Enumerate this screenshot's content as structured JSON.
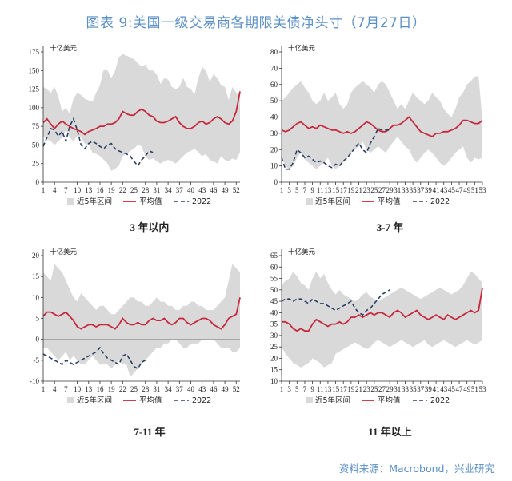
{
  "title": "图表 9:美国一级交易商各期限美债净头寸（7月27日）",
  "source": "资料来源：Macrobond，兴业研究",
  "colors": {
    "band": "#d9d9d9",
    "avg": "#c8283c",
    "y2022": "#2b3f66",
    "title": "#5b8fc6"
  },
  "chart_data": [
    {
      "type": "line",
      "caption": "3 年以内",
      "unit": "十亿美元",
      "ylim": [
        0,
        175
      ],
      "yticks": [
        0,
        25,
        50,
        75,
        100,
        125,
        150,
        175
      ],
      "xlim": [
        1,
        53
      ],
      "xticks": [
        1,
        4,
        7,
        10,
        13,
        16,
        19,
        22,
        25,
        28,
        31,
        34,
        37,
        40,
        43,
        46,
        49,
        52
      ],
      "legend": [
        "近5年区间",
        "平均值",
        "2022"
      ],
      "band_upper": [
        128,
        125,
        120,
        128,
        115,
        95,
        100,
        92,
        112,
        120,
        117,
        112,
        110,
        108,
        120,
        130,
        152,
        150,
        140,
        150,
        168,
        172,
        170,
        168,
        165,
        160,
        155,
        158,
        150,
        150,
        145,
        132,
        140,
        138,
        128,
        125,
        128,
        140,
        128,
        125,
        118,
        140,
        155,
        150,
        135,
        145,
        140,
        130,
        128,
        110,
        128,
        120,
        115
      ],
      "band_lower": [
        62,
        58,
        55,
        50,
        55,
        60,
        70,
        60,
        55,
        62,
        60,
        52,
        50,
        40,
        38,
        35,
        30,
        25,
        15,
        18,
        22,
        35,
        38,
        42,
        45,
        50,
        48,
        35,
        30,
        32,
        28,
        25,
        28,
        30,
        28,
        25,
        30,
        35,
        40,
        42,
        45,
        40,
        35,
        38,
        30,
        28,
        25,
        35,
        30,
        28,
        32,
        30,
        40
      ],
      "avg": [
        80,
        85,
        78,
        72,
        78,
        82,
        78,
        75,
        72,
        70,
        68,
        64,
        68,
        70,
        72,
        75,
        75,
        78,
        78,
        80,
        85,
        95,
        92,
        90,
        90,
        95,
        98,
        95,
        90,
        88,
        82,
        80,
        80,
        82,
        85,
        88,
        80,
        75,
        72,
        72,
        75,
        80,
        82,
        78,
        80,
        85,
        88,
        85,
        80,
        78,
        82,
        95,
        122
      ],
      "y2022": [
        48,
        60,
        72,
        70,
        62,
        68,
        55,
        75,
        85,
        70,
        50,
        45,
        52,
        55,
        52,
        48,
        45,
        50,
        52,
        45,
        42,
        40,
        38,
        35,
        28,
        22,
        30,
        35,
        42,
        40
      ]
    },
    {
      "type": "line",
      "caption": "3-7 年",
      "unit": "十亿美元",
      "ylim": [
        0,
        80
      ],
      "yticks": [
        0,
        10,
        20,
        30,
        40,
        50,
        60,
        70,
        80
      ],
      "xlim": [
        1,
        53
      ],
      "xticks": [
        1,
        3,
        5,
        7,
        9,
        11,
        13,
        15,
        17,
        19,
        21,
        23,
        25,
        27,
        29,
        31,
        33,
        35,
        37,
        39,
        41,
        43,
        45,
        47,
        49,
        51,
        53
      ],
      "legend": [
        "近5年区间",
        "平均值",
        "2022"
      ],
      "band_upper": [
        50,
        52,
        55,
        58,
        60,
        62,
        58,
        55,
        50,
        48,
        50,
        55,
        50,
        52,
        55,
        48,
        45,
        48,
        55,
        58,
        60,
        62,
        60,
        58,
        55,
        60,
        62,
        60,
        55,
        50,
        45,
        48,
        45,
        50,
        55,
        52,
        50,
        48,
        50,
        55,
        52,
        50,
        45,
        42,
        40,
        45,
        52,
        55,
        60,
        62,
        65,
        65,
        38
      ],
      "band_lower": [
        15,
        10,
        8,
        10,
        15,
        18,
        14,
        12,
        10,
        8,
        10,
        12,
        15,
        10,
        8,
        10,
        12,
        15,
        18,
        20,
        22,
        25,
        20,
        18,
        20,
        22,
        20,
        18,
        22,
        25,
        28,
        25,
        22,
        20,
        15,
        12,
        15,
        18,
        20,
        18,
        15,
        12,
        10,
        12,
        15,
        18,
        20,
        22,
        15,
        12,
        15,
        14,
        15
      ],
      "avg": [
        32,
        31,
        32,
        34,
        36,
        37,
        35,
        33,
        34,
        33,
        35,
        34,
        33,
        32,
        32,
        31,
        30,
        31,
        30,
        31,
        33,
        35,
        37,
        36,
        34,
        32,
        31,
        31,
        33,
        35,
        35,
        36,
        38,
        40,
        37,
        34,
        31,
        30,
        29,
        28,
        30,
        30,
        31,
        31,
        32,
        33,
        35,
        38,
        38,
        37,
        36,
        36,
        38
      ],
      "y2022": [
        15,
        8,
        8,
        12,
        20,
        18,
        15,
        16,
        14,
        12,
        13,
        12,
        10,
        9,
        11,
        10,
        13,
        15,
        18,
        21,
        24,
        20,
        18,
        24,
        28,
        33,
        32,
        32,
        32
      ]
    },
    {
      "type": "line",
      "caption": "7-11 年",
      "unit": "十亿美元",
      "ylim": [
        -10,
        20
      ],
      "yticks": [
        -10,
        -5,
        0,
        5,
        10,
        15,
        20
      ],
      "xlim": [
        1,
        53
      ],
      "xticks": [
        1,
        4,
        7,
        10,
        13,
        16,
        19,
        22,
        25,
        28,
        31,
        34,
        37,
        40,
        43,
        46,
        49,
        52
      ],
      "legend": [
        "近5年区间",
        "平均值",
        "2022"
      ],
      "band_upper": [
        16,
        15,
        14,
        18,
        17,
        16,
        14,
        12,
        10,
        9,
        11,
        10,
        9,
        8,
        7,
        8,
        8,
        7,
        6,
        6,
        7,
        8,
        9,
        10,
        10,
        9,
        9,
        8,
        8,
        9,
        10,
        9,
        9,
        8,
        8,
        7,
        7,
        8,
        8,
        9,
        9,
        8,
        8,
        7,
        7,
        7,
        8,
        9,
        10,
        14,
        18,
        17,
        16
      ],
      "band_lower": [
        -2,
        -2,
        -3,
        -4,
        -5,
        -4,
        -3,
        -5,
        -4,
        -5,
        -6,
        -6,
        -5,
        -4,
        -5,
        -6,
        -6,
        -6,
        -7,
        -6,
        -5,
        -6,
        -6,
        -9,
        -8,
        -7,
        -6,
        -5,
        -4,
        -3,
        -2,
        -2,
        -1,
        -1,
        0,
        0,
        -1,
        -2,
        -2,
        -1,
        -1,
        -1,
        0,
        0,
        0,
        0,
        -1,
        -2,
        -2,
        -2,
        -3,
        -3,
        -2
      ],
      "avg": [
        5.5,
        6.5,
        6.5,
        6,
        5.5,
        6,
        6.5,
        5.5,
        4.5,
        3,
        2.5,
        3,
        3.5,
        3.5,
        3,
        3.5,
        3.5,
        3.5,
        3,
        2.5,
        3.5,
        5,
        4,
        3.5,
        3.5,
        4,
        3.5,
        3.5,
        4.5,
        5,
        4.5,
        4.5,
        5,
        4,
        3.5,
        4,
        5,
        5,
        4,
        3.5,
        4,
        4.5,
        5,
        5,
        4.5,
        3.5,
        3,
        2.5,
        3.5,
        5,
        5.5,
        6,
        10
      ],
      "y2022": [
        -3.5,
        -4,
        -4.5,
        -5,
        -5.5,
        -6,
        -5,
        -5.5,
        -6,
        -5.5,
        -5,
        -4.5,
        -4,
        -3.5,
        -3,
        -2,
        -3.5,
        -4.5,
        -5,
        -5.5,
        -6,
        -4,
        -3.5,
        -5,
        -6.5,
        -7,
        -5.5,
        -5
      ]
    },
    {
      "type": "line",
      "caption": "11 年以上",
      "unit": "十亿美元",
      "ylim": [
        10,
        65
      ],
      "yticks": [
        10,
        15,
        20,
        25,
        30,
        35,
        40,
        45,
        50,
        55,
        60,
        65
      ],
      "xlim": [
        1,
        53
      ],
      "xticks": [
        1,
        3,
        5,
        7,
        9,
        11,
        13,
        15,
        17,
        19,
        21,
        23,
        25,
        27,
        29,
        31,
        33,
        35,
        37,
        39,
        41,
        43,
        45,
        47,
        49,
        51,
        53
      ],
      "legend": [
        "近5年区间",
        "平均值",
        "2022"
      ],
      "band_upper": [
        52,
        54,
        55,
        58,
        56,
        53,
        52,
        50,
        55,
        58,
        55,
        57,
        53,
        50,
        48,
        50,
        48,
        47,
        46,
        45,
        46,
        48,
        49,
        47,
        46,
        45,
        46,
        47,
        48,
        49,
        50,
        51,
        50,
        49,
        48,
        47,
        46,
        47,
        48,
        49,
        50,
        51,
        50,
        49,
        48,
        49,
        50,
        52,
        55,
        58,
        57,
        55,
        53
      ],
      "band_lower": [
        25,
        22,
        20,
        18,
        17,
        16,
        17,
        18,
        20,
        19,
        18,
        16,
        17,
        18,
        22,
        23,
        24,
        25,
        26,
        27,
        26,
        25,
        24,
        25,
        27,
        28,
        27,
        26,
        25,
        26,
        27,
        28,
        27,
        26,
        25,
        26,
        27,
        28,
        26,
        25,
        26,
        27,
        28,
        27,
        26,
        25,
        26,
        27,
        28,
        27,
        26,
        27,
        28
      ],
      "avg": [
        36,
        36,
        35,
        33,
        32,
        33,
        32,
        32,
        35,
        37,
        36,
        35,
        34,
        35,
        35,
        36,
        35,
        36,
        38,
        38,
        39,
        38,
        39,
        40,
        39,
        40,
        40,
        39,
        38,
        40,
        41,
        40,
        38,
        39,
        40,
        41,
        39,
        38,
        37,
        38,
        39,
        38,
        37,
        39,
        38,
        37,
        38,
        39,
        40,
        41,
        40,
        41,
        51
      ],
      "y2022": [
        45,
        46,
        46,
        45,
        46,
        46,
        45,
        44,
        46,
        45,
        44,
        44,
        43,
        42,
        41,
        42,
        43,
        44,
        45,
        42,
        40,
        39,
        41,
        42,
        44,
        46,
        48,
        49,
        50
      ]
    }
  ]
}
